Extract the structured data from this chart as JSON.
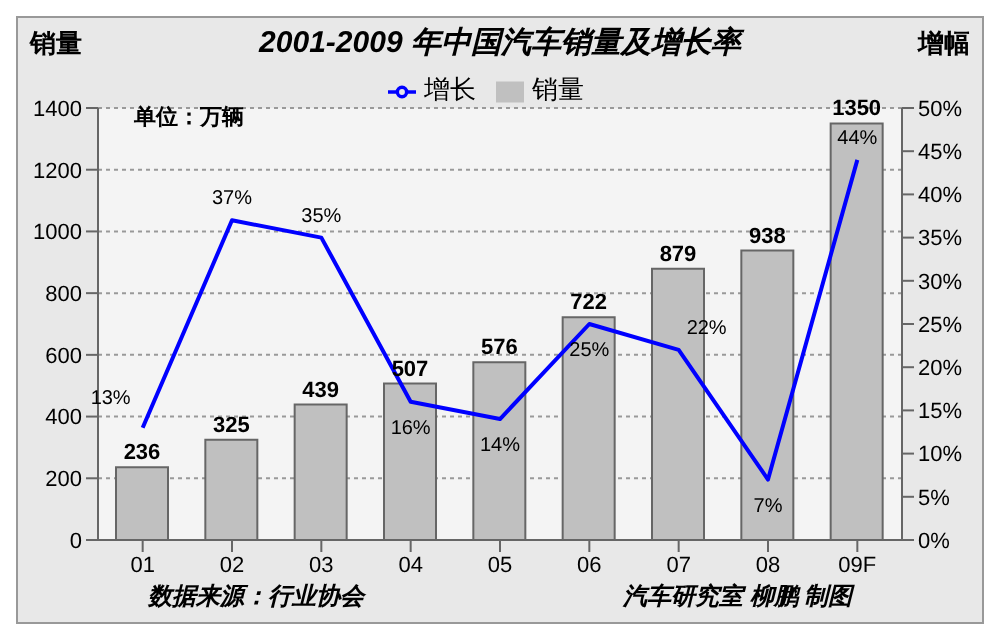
{
  "chart_data": {
    "type": "bar",
    "title": "2001-2009 年中国汽车销量及增长率",
    "ylabel": "销量",
    "y2label": "增幅",
    "categories": [
      "01",
      "02",
      "03",
      "04",
      "05",
      "06",
      "07",
      "08",
      "09F"
    ],
    "series": [
      {
        "name": "销量",
        "color": "#c0c0c0",
        "values": [
          236,
          325,
          439,
          507,
          576,
          722,
          879,
          938,
          1350
        ],
        "value_labels": [
          "236",
          "325",
          "439",
          "507",
          "576",
          "722",
          "879",
          "938",
          "1350"
        ]
      },
      {
        "name": "增长",
        "type": "line",
        "axis": "y2",
        "color": "#0000ff",
        "values": [
          13,
          37,
          35,
          16,
          14,
          25,
          22,
          7,
          44
        ],
        "value_labels": [
          "13%",
          "37%",
          "35%",
          "16%",
          "14%",
          "25%",
          "22%",
          "7%",
          "44%"
        ]
      }
    ],
    "ylim": [
      0,
      1400
    ],
    "yticks": [
      0,
      200,
      400,
      600,
      800,
      1000,
      1200,
      1400
    ],
    "y2lim": [
      0,
      50
    ],
    "y2ticks": [
      {
        "value": 0,
        "label": "0%"
      },
      {
        "value": 5,
        "label": "5%"
      },
      {
        "value": 10,
        "label": "10%"
      },
      {
        "value": 15,
        "label": "15%"
      },
      {
        "value": 20,
        "label": "20%"
      },
      {
        "value": 25,
        "label": "25%"
      },
      {
        "value": 30,
        "label": "30%"
      },
      {
        "value": 35,
        "label": "35%"
      },
      {
        "value": 40,
        "label": "40%"
      },
      {
        "value": 45,
        "label": "45%"
      },
      {
        "value": 50,
        "label": "50%"
      }
    ],
    "grid": "y",
    "legend": "top",
    "marker": "none",
    "line_style": "solid",
    "annotations": [
      "单位：万辆",
      "数据来源：行业协会",
      "汽车研究室 柳鹏 制图"
    ]
  }
}
